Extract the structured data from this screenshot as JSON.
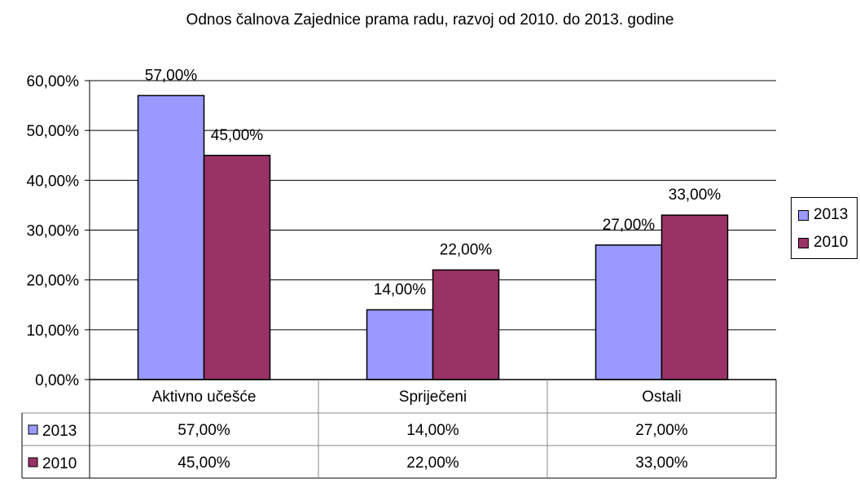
{
  "chart_data": {
    "type": "bar",
    "title": "Odnos čalnova Zajednice prama radu, razvoj od 2010. do 2013. godine",
    "categories": [
      "Aktivno učešće",
      "Spriječeni",
      "Ostali"
    ],
    "series": [
      {
        "name": "2013",
        "values": [
          57,
          14,
          27
        ],
        "labels": [
          "57,00%",
          "14,00%",
          "27,00%"
        ],
        "color": "#9999ff"
      },
      {
        "name": "2010",
        "values": [
          45,
          22,
          33
        ],
        "labels": [
          "45,00%",
          "22,00%",
          "33,00%"
        ],
        "color": "#993366"
      }
    ],
    "ylim": [
      0,
      60
    ],
    "yticks": [
      "0,00%",
      "10,00%",
      "20,00%",
      "30,00%",
      "40,00%",
      "50,00%",
      "60,00%"
    ],
    "grid": true,
    "legend_position": "right",
    "data_table": true
  }
}
